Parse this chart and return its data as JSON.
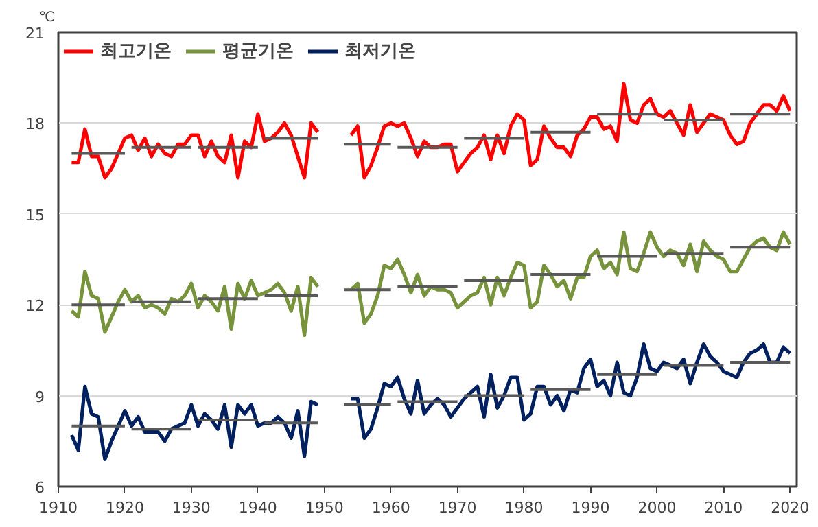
{
  "chart_data": {
    "type": "line",
    "ylabel": "℃",
    "xlim": [
      1910,
      2021
    ],
    "ylim": [
      6,
      21
    ],
    "xticks": [
      1910,
      1920,
      1930,
      1940,
      1950,
      1960,
      1970,
      1980,
      1990,
      2000,
      2010,
      2020
    ],
    "yticks": [
      6,
      9,
      12,
      15,
      18,
      21
    ],
    "grid": "y",
    "legend": "top left",
    "marker": "none",
    "line_style": "solid",
    "x": [
      1912,
      1913,
      1914,
      1915,
      1916,
      1917,
      1918,
      1919,
      1920,
      1921,
      1922,
      1923,
      1924,
      1925,
      1926,
      1927,
      1928,
      1929,
      1930,
      1931,
      1932,
      1933,
      1934,
      1935,
      1936,
      1937,
      1938,
      1939,
      1940,
      1941,
      1942,
      1943,
      1944,
      1945,
      1946,
      1947,
      1948,
      1949,
      1951,
      1954,
      1955,
      1956,
      1957,
      1958,
      1959,
      1960,
      1961,
      1962,
      1963,
      1964,
      1965,
      1966,
      1967,
      1968,
      1969,
      1970,
      1971,
      1972,
      1973,
      1974,
      1975,
      1976,
      1977,
      1978,
      1979,
      1980,
      1981,
      1982,
      1983,
      1984,
      1985,
      1986,
      1987,
      1988,
      1989,
      1990,
      1991,
      1992,
      1993,
      1994,
      1995,
      1996,
      1997,
      1998,
      1999,
      2000,
      2001,
      2002,
      2003,
      2004,
      2005,
      2006,
      2007,
      2008,
      2009,
      2010,
      2011,
      2012,
      2013,
      2014,
      2015,
      2016,
      2017,
      2018,
      2019,
      2020
    ],
    "series": [
      {
        "name": "최고기온",
        "color": "#ff0000",
        "values": [
          16.7,
          16.7,
          17.8,
          16.9,
          16.9,
          16.2,
          16.5,
          17.0,
          17.5,
          17.6,
          17.1,
          17.5,
          16.9,
          17.3,
          17.0,
          16.9,
          17.3,
          17.3,
          17.6,
          17.6,
          16.9,
          17.4,
          16.9,
          16.7,
          17.6,
          16.2,
          17.4,
          17.2,
          18.3,
          17.4,
          17.5,
          17.7,
          18.0,
          17.6,
          16.9,
          16.2,
          18.0,
          17.7,
          null,
          17.6,
          17.9,
          16.2,
          16.6,
          17.2,
          17.9,
          18.0,
          17.9,
          18.0,
          17.5,
          16.9,
          17.4,
          17.2,
          17.2,
          17.3,
          17.3,
          16.4,
          16.7,
          17.0,
          17.2,
          17.6,
          16.8,
          17.6,
          17.0,
          17.9,
          18.3,
          18.1,
          16.6,
          16.8,
          17.9,
          17.5,
          17.2,
          17.2,
          16.9,
          17.6,
          17.8,
          18.2,
          18.2,
          17.8,
          17.9,
          17.4,
          19.3,
          18.1,
          18.0,
          18.6,
          18.8,
          18.3,
          18.2,
          18.4,
          18.0,
          17.6,
          18.6,
          17.7,
          18.0,
          18.3,
          18.2,
          18.1,
          17.6,
          17.3,
          17.4,
          18.0,
          18.3,
          18.6,
          18.6,
          18.4,
          18.9,
          18.4
        ]
      },
      {
        "name": "평균기온",
        "color": "#77933c",
        "values": [
          11.8,
          11.6,
          13.1,
          12.3,
          12.2,
          11.1,
          11.6,
          12.1,
          12.5,
          12.1,
          12.3,
          11.9,
          12.0,
          11.9,
          11.7,
          12.2,
          12.1,
          12.3,
          12.7,
          11.9,
          12.3,
          12.1,
          11.8,
          12.6,
          11.2,
          12.7,
          12.2,
          12.8,
          12.3,
          12.4,
          12.5,
          12.7,
          12.4,
          11.8,
          12.6,
          11.0,
          12.9,
          12.6,
          null,
          12.5,
          12.7,
          11.4,
          11.7,
          12.3,
          13.3,
          13.2,
          13.5,
          13.0,
          12.4,
          13.0,
          12.3,
          12.6,
          12.5,
          12.5,
          12.4,
          11.9,
          12.1,
          12.3,
          12.4,
          12.9,
          12.0,
          12.9,
          12.3,
          12.9,
          13.4,
          13.3,
          11.9,
          12.1,
          13.3,
          13.0,
          12.6,
          12.8,
          12.2,
          12.9,
          12.9,
          13.6,
          13.8,
          13.2,
          13.4,
          13.0,
          14.4,
          13.2,
          13.1,
          13.7,
          14.4,
          13.9,
          13.6,
          13.8,
          13.7,
          13.3,
          14.0,
          13.1,
          14.1,
          13.8,
          13.6,
          13.5,
          13.1,
          13.1,
          13.5,
          13.9,
          14.1,
          14.2,
          13.9,
          13.8,
          14.4,
          14.0
        ]
      },
      {
        "name": "최저기온",
        "color": "#002060",
        "values": [
          7.7,
          7.2,
          9.3,
          8.4,
          8.3,
          6.9,
          7.5,
          8.0,
          8.5,
          8.0,
          8.3,
          7.8,
          7.8,
          7.8,
          7.5,
          7.9,
          8.0,
          8.1,
          8.7,
          8.0,
          8.4,
          8.2,
          7.9,
          8.7,
          7.3,
          8.7,
          8.4,
          8.7,
          8.0,
          8.1,
          8.1,
          8.3,
          8.1,
          7.6,
          8.5,
          7.0,
          8.8,
          8.7,
          null,
          8.9,
          8.9,
          7.6,
          7.9,
          8.6,
          9.4,
          9.3,
          9.6,
          8.9,
          8.4,
          9.5,
          8.4,
          8.7,
          8.9,
          8.7,
          8.3,
          8.6,
          8.9,
          9.1,
          9.3,
          8.3,
          9.7,
          8.6,
          9.0,
          9.6,
          9.6,
          8.2,
          8.4,
          9.3,
          9.3,
          8.7,
          9.0,
          8.5,
          9.2,
          9.1,
          9.9,
          10.2,
          9.3,
          9.5,
          9.0,
          10.1,
          9.1,
          9.0,
          9.6,
          10.7,
          9.9,
          9.8,
          10.1,
          10.0,
          9.9,
          10.2,
          9.4,
          10.1,
          10.7,
          10.3,
          10.1,
          9.8,
          9.7,
          9.6,
          10.1,
          10.4,
          10.5,
          10.7,
          10.1,
          10.1,
          10.6,
          10.4
        ]
      },
      {
        "type": "line",
        "color": "#595959",
        "x": [
          1912,
          1920,
          1920.5,
          1921,
          1930,
          1930.5,
          1931,
          1940,
          1940.5,
          1941,
          1949,
          1951,
          1953,
          1960,
          1960.5,
          1961,
          1970,
          1970.5,
          1971,
          1980,
          1980.5,
          1981,
          1990,
          1990.5,
          1991,
          2000,
          2000.5,
          2001,
          2010,
          2010.5,
          2011,
          2020
        ],
        "values": [
          17.0,
          17.0,
          null,
          17.2,
          17.2,
          null,
          17.2,
          17.2,
          null,
          17.5,
          17.5,
          null,
          17.3,
          17.3,
          null,
          17.2,
          17.2,
          null,
          17.5,
          17.5,
          null,
          17.7,
          17.7,
          null,
          18.3,
          18.3,
          null,
          18.1,
          18.1,
          null,
          18.3,
          18.3
        ]
      },
      {
        "type": "line",
        "color": "#595959",
        "x": [
          1912,
          1920,
          1920.5,
          1921,
          1930,
          1930.5,
          1931,
          1940,
          1940.5,
          1941,
          1949,
          1951,
          1953,
          1960,
          1960.5,
          1961,
          1970,
          1970.5,
          1971,
          1980,
          1980.5,
          1981,
          1990,
          1990.5,
          1991,
          2000,
          2000.5,
          2001,
          2010,
          2010.5,
          2011,
          2020
        ],
        "values": [
          12.0,
          12.0,
          null,
          12.1,
          12.1,
          null,
          12.2,
          12.2,
          null,
          12.3,
          12.3,
          null,
          12.5,
          12.5,
          null,
          12.6,
          12.6,
          null,
          12.8,
          12.8,
          null,
          13.0,
          13.0,
          null,
          13.6,
          13.6,
          null,
          13.7,
          13.7,
          null,
          13.9,
          13.9
        ]
      },
      {
        "type": "line",
        "color": "#595959",
        "x": [
          1912,
          1920,
          1920.5,
          1921,
          1930,
          1930.5,
          1931,
          1940,
          1940.5,
          1941,
          1949,
          1951,
          1953,
          1960,
          1960.5,
          1961,
          1970,
          1970.5,
          1971,
          1980,
          1980.5,
          1981,
          1990,
          1990.5,
          1991,
          2000,
          2000.5,
          2001,
          2010,
          2010.5,
          2011,
          2020
        ],
        "values": [
          8.0,
          8.0,
          null,
          7.9,
          7.9,
          null,
          8.2,
          8.2,
          null,
          8.1,
          8.1,
          null,
          8.7,
          8.7,
          null,
          8.8,
          8.8,
          null,
          9.0,
          9.0,
          null,
          9.2,
          9.2,
          null,
          9.7,
          9.7,
          null,
          10.0,
          10.0,
          null,
          10.1,
          10.1
        ]
      }
    ]
  }
}
